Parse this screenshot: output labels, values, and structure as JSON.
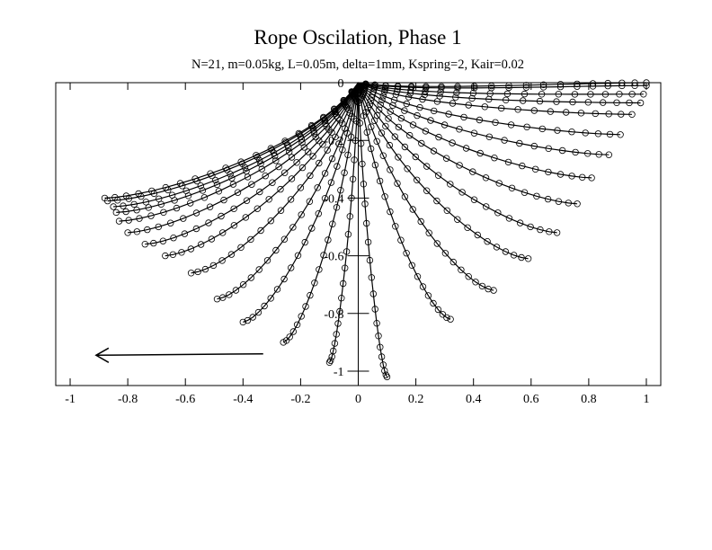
{
  "chart_data": {
    "type": "line",
    "title": "Rope Oscilation, Phase 1",
    "subtitle": "N=21, m=0.05kg, L=0.05m, delta=1mm, Kspring=2,  Kair=0.02",
    "xlabel": "",
    "ylabel": "",
    "xlim": [
      -1.05,
      1.05
    ],
    "ylim": [
      -1.05,
      0.0
    ],
    "x_ticks": [
      "-1",
      "-0.8",
      "-0.6",
      "-0.4",
      "-0.2",
      "0",
      "0.2",
      "0.4",
      "0.6",
      "0.8",
      "1"
    ],
    "y_ticks": [
      "0",
      "-0.2",
      "-0.4",
      "-0.6",
      "-0.8",
      "-1"
    ],
    "y_tick_values": [
      0,
      -0.2,
      -0.4,
      -0.6,
      -0.8,
      -1.0
    ],
    "grid": false,
    "markers": "open circles",
    "nodes_per_curve": 21,
    "anchor": [
      0,
      0
    ],
    "arrow": {
      "from": [
        -0.33,
        -0.94
      ],
      "to": [
        -0.91,
        -0.945
      ],
      "direction": "left"
    },
    "series_note": "Each series is one snapshot of the rope; tip = free end position",
    "tips": [
      [
        1.0,
        0.0
      ],
      [
        1.0,
        -0.01
      ],
      [
        0.99,
        -0.04
      ],
      [
        0.98,
        -0.07
      ],
      [
        0.95,
        -0.11
      ],
      [
        0.91,
        -0.18
      ],
      [
        0.87,
        -0.25
      ],
      [
        0.81,
        -0.33
      ],
      [
        0.76,
        -0.42
      ],
      [
        0.69,
        -0.52
      ],
      [
        0.59,
        -0.61
      ],
      [
        0.47,
        -0.72
      ],
      [
        0.32,
        -0.82
      ],
      [
        0.1,
        -1.02
      ],
      [
        -0.1,
        -0.97
      ],
      [
        -0.26,
        -0.9
      ],
      [
        -0.4,
        -0.83
      ],
      [
        -0.49,
        -0.75
      ],
      [
        -0.58,
        -0.66
      ],
      [
        -0.67,
        -0.6
      ],
      [
        -0.74,
        -0.56
      ],
      [
        -0.8,
        -0.52
      ],
      [
        -0.83,
        -0.48
      ],
      [
        -0.84,
        -0.45
      ],
      [
        -0.85,
        -0.43
      ],
      [
        -0.87,
        -0.41
      ],
      [
        -0.88,
        -0.4
      ]
    ]
  }
}
